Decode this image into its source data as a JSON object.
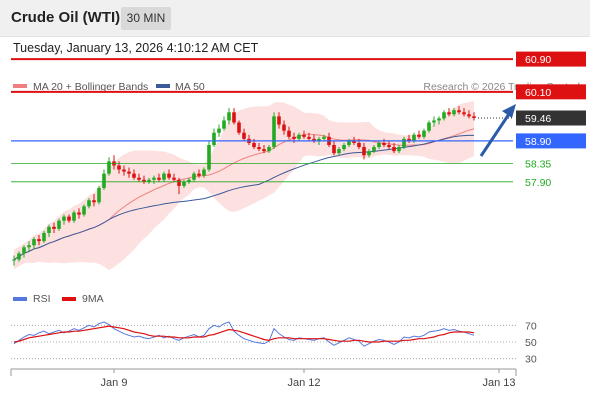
{
  "header": {
    "instrument": "Crude Oil (WTI)",
    "timeframe": "30 MIN",
    "timestamp": "Tuesday, January 13, 2026 4:10:12 AM CET"
  },
  "legend": {
    "ma20_bb": "MA 20 + Bollinger Bands",
    "ma50": "MA 50",
    "credit": "Research © 2026 Trading Central"
  },
  "colors": {
    "resistance": "#dd1111",
    "support": "#22aa22",
    "pivot": "#3366ff",
    "current": "#333333",
    "ma20": "#f08080",
    "ma50": "#3a5a9a",
    "rsi": "#5577dd",
    "rsi_ma": "#dd1111",
    "candle_up": "#22aa22",
    "candle_down": "#dd1111",
    "arrow": "#2a5aa8"
  },
  "levels": [
    {
      "value": 60.9,
      "label": "60.90",
      "kind": "resistance"
    },
    {
      "value": 60.1,
      "label": "60.10",
      "kind": "resistance"
    },
    {
      "value": 59.46,
      "label": "59.46",
      "kind": "current"
    },
    {
      "value": 58.9,
      "label": "58.90",
      "kind": "pivot"
    },
    {
      "value": 58.35,
      "label": "58.35",
      "kind": "support"
    },
    {
      "value": 57.9,
      "label": "57.90",
      "kind": "support"
    }
  ],
  "rsi_panel": {
    "legend_rsi": "RSI",
    "legend_ma": "9MA",
    "levels": [
      70,
      50,
      30
    ],
    "ticks": [
      "70",
      "50",
      "30"
    ]
  },
  "x_axis": {
    "labels": [
      "Jan 9",
      "Jan 12",
      "Jan 13"
    ]
  },
  "chart_data": {
    "type": "candlestick",
    "title": "Crude Oil (WTI)",
    "timeframe": "30 MIN",
    "ylim": [
      55.5,
      61.0
    ],
    "x_labels": [
      {
        "label": "Jan 9",
        "index": 20
      },
      {
        "label": "Jan 12",
        "index": 58
      },
      {
        "label": "Jan 13",
        "index": 97
      }
    ],
    "candles": [
      [
        56.0,
        56.1,
        55.85,
        56.0
      ],
      [
        56.0,
        56.2,
        55.95,
        56.15
      ],
      [
        56.15,
        56.35,
        56.05,
        56.3
      ],
      [
        56.3,
        56.45,
        56.2,
        56.35
      ],
      [
        56.35,
        56.55,
        56.25,
        56.5
      ],
      [
        56.5,
        56.6,
        56.35,
        56.45
      ],
      [
        56.45,
        56.7,
        56.4,
        56.65
      ],
      [
        56.65,
        56.85,
        56.55,
        56.8
      ],
      [
        56.8,
        56.9,
        56.65,
        56.75
      ],
      [
        56.75,
        57.0,
        56.7,
        56.95
      ],
      [
        56.95,
        57.1,
        56.85,
        57.05
      ],
      [
        57.05,
        57.1,
        56.9,
        56.95
      ],
      [
        56.95,
        57.2,
        56.9,
        57.15
      ],
      [
        57.15,
        57.25,
        57.0,
        57.1
      ],
      [
        57.1,
        57.35,
        57.05,
        57.3
      ],
      [
        57.3,
        57.5,
        57.25,
        57.45
      ],
      [
        57.45,
        57.6,
        57.3,
        57.4
      ],
      [
        57.4,
        57.8,
        57.35,
        57.75
      ],
      [
        57.75,
        58.2,
        57.7,
        58.1
      ],
      [
        58.1,
        58.5,
        58.05,
        58.4
      ],
      [
        58.4,
        58.55,
        58.2,
        58.3
      ],
      [
        58.3,
        58.4,
        58.1,
        58.2
      ],
      [
        58.2,
        58.3,
        58.05,
        58.15
      ],
      [
        58.15,
        58.25,
        58.0,
        58.1
      ],
      [
        58.1,
        58.2,
        57.95,
        58.0
      ],
      [
        58.0,
        58.1,
        57.9,
        57.95
      ],
      [
        57.95,
        58.05,
        57.85,
        57.9
      ],
      [
        57.9,
        58.0,
        57.85,
        57.95
      ],
      [
        57.95,
        58.05,
        57.85,
        58.0
      ],
      [
        58.0,
        58.1,
        57.9,
        57.95
      ],
      [
        57.95,
        58.15,
        57.9,
        58.1
      ],
      [
        58.1,
        58.2,
        57.95,
        58.0
      ],
      [
        58.0,
        58.1,
        57.9,
        57.95
      ],
      [
        57.95,
        58.0,
        57.6,
        57.8
      ],
      [
        57.8,
        57.95,
        57.75,
        57.9
      ],
      [
        57.9,
        58.0,
        57.85,
        57.95
      ],
      [
        57.95,
        58.15,
        57.9,
        58.1
      ],
      [
        58.1,
        58.2,
        58.0,
        58.05
      ],
      [
        58.05,
        58.25,
        58.0,
        58.2
      ],
      [
        58.2,
        58.9,
        58.15,
        58.8
      ],
      [
        58.8,
        59.2,
        58.75,
        59.1
      ],
      [
        59.1,
        59.3,
        59.0,
        59.2
      ],
      [
        59.2,
        59.5,
        59.15,
        59.4
      ],
      [
        59.4,
        59.7,
        59.3,
        59.6
      ],
      [
        59.6,
        59.7,
        59.3,
        59.35
      ],
      [
        59.35,
        59.4,
        59.05,
        59.1
      ],
      [
        59.1,
        59.2,
        58.9,
        58.95
      ],
      [
        58.95,
        59.05,
        58.8,
        58.85
      ],
      [
        58.85,
        58.95,
        58.7,
        58.75
      ],
      [
        58.75,
        58.85,
        58.65,
        58.7
      ],
      [
        58.7,
        58.8,
        58.6,
        58.65
      ],
      [
        58.65,
        58.8,
        58.6,
        58.75
      ],
      [
        58.75,
        59.6,
        58.7,
        59.5
      ],
      [
        59.5,
        59.6,
        59.2,
        59.3
      ],
      [
        59.3,
        59.4,
        59.05,
        59.15
      ],
      [
        59.15,
        59.25,
        58.95,
        59.0
      ],
      [
        59.0,
        59.1,
        58.85,
        58.95
      ],
      [
        58.95,
        59.1,
        58.9,
        59.05
      ],
      [
        59.05,
        59.15,
        58.95,
        59.0
      ],
      [
        59.0,
        59.1,
        58.9,
        58.95
      ],
      [
        58.95,
        59.05,
        58.85,
        58.9
      ],
      [
        58.9,
        59.0,
        58.8,
        58.95
      ],
      [
        58.95,
        59.05,
        58.9,
        59.0
      ],
      [
        59.0,
        59.1,
        58.75,
        58.8
      ],
      [
        58.8,
        58.9,
        58.55,
        58.6
      ],
      [
        58.6,
        58.75,
        58.55,
        58.7
      ],
      [
        58.7,
        58.85,
        58.65,
        58.8
      ],
      [
        58.8,
        58.95,
        58.75,
        58.9
      ],
      [
        58.9,
        59.0,
        58.8,
        58.85
      ],
      [
        58.85,
        58.95,
        58.7,
        58.75
      ],
      [
        58.75,
        58.85,
        58.45,
        58.55
      ],
      [
        58.55,
        58.7,
        58.5,
        58.65
      ],
      [
        58.65,
        58.8,
        58.6,
        58.75
      ],
      [
        58.75,
        58.9,
        58.7,
        58.85
      ],
      [
        58.85,
        58.95,
        58.75,
        58.8
      ],
      [
        58.8,
        58.9,
        58.7,
        58.75
      ],
      [
        58.75,
        58.85,
        58.6,
        58.65
      ],
      [
        58.65,
        58.8,
        58.6,
        58.75
      ],
      [
        58.75,
        59.0,
        58.7,
        58.95
      ],
      [
        58.95,
        59.05,
        58.85,
        58.9
      ],
      [
        58.9,
        59.1,
        58.85,
        59.05
      ],
      [
        59.05,
        59.15,
        58.95,
        59.0
      ],
      [
        59.0,
        59.2,
        58.95,
        59.15
      ],
      [
        59.15,
        59.4,
        59.1,
        59.35
      ],
      [
        59.35,
        59.5,
        59.25,
        59.4
      ],
      [
        59.4,
        59.5,
        59.3,
        59.45
      ],
      [
        59.45,
        59.65,
        59.4,
        59.6
      ],
      [
        59.6,
        59.7,
        59.5,
        59.55
      ],
      [
        59.55,
        59.7,
        59.5,
        59.65
      ],
      [
        59.65,
        59.75,
        59.55,
        59.6
      ],
      [
        59.6,
        59.7,
        59.5,
        59.55
      ],
      [
        59.55,
        59.65,
        59.45,
        59.5
      ],
      [
        59.5,
        59.6,
        59.4,
        59.46
      ]
    ],
    "rsi": [
      48,
      52,
      56,
      59,
      58,
      61,
      63,
      60,
      62,
      64,
      61,
      63,
      66,
      64,
      67,
      70,
      68,
      72,
      74,
      71,
      66,
      63,
      60,
      58,
      56,
      57,
      55,
      54,
      56,
      58,
      55,
      57,
      54,
      52,
      55,
      57,
      59,
      56,
      58,
      66,
      70,
      68,
      72,
      74,
      63,
      58,
      54,
      52,
      50,
      49,
      48,
      51,
      66,
      60,
      56,
      53,
      52,
      55,
      54,
      53,
      52,
      54,
      55,
      50,
      46,
      49,
      52,
      55,
      53,
      51,
      45,
      48,
      51,
      53,
      52,
      50,
      47,
      50,
      56,
      55,
      57,
      56,
      58,
      62,
      63,
      64,
      66,
      64,
      65,
      63,
      62,
      60,
      58
    ],
    "rsi_ma": [
      50,
      51,
      53,
      55,
      56,
      57,
      58,
      59,
      60,
      61,
      62,
      62,
      63,
      63,
      64,
      65,
      66,
      67,
      68,
      69,
      68,
      67,
      66,
      64,
      62,
      61,
      60,
      58,
      57,
      57,
      57,
      56,
      56,
      55,
      55,
      55,
      56,
      56,
      56,
      58,
      59,
      61,
      63,
      65,
      64,
      63,
      61,
      59,
      57,
      55,
      53,
      52,
      54,
      55,
      55,
      55,
      54,
      54,
      54,
      54,
      54,
      54,
      54,
      53,
      52,
      51,
      51,
      51,
      52,
      52,
      51,
      50,
      50,
      50,
      51,
      51,
      51,
      51,
      52,
      52,
      53,
      54,
      54,
      55,
      56,
      58,
      59,
      61,
      62,
      62,
      62,
      62,
      61
    ]
  }
}
